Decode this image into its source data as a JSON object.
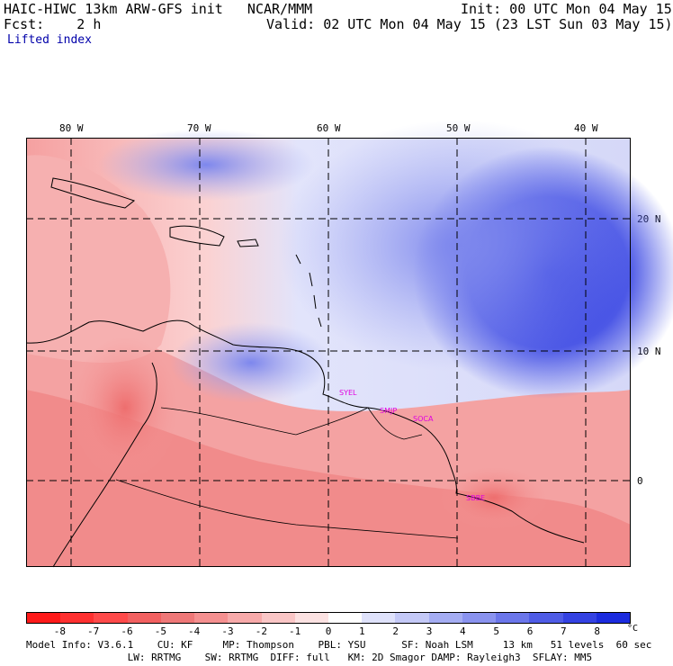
{
  "header": {
    "model": "HAIC-HIWC 13km ARW-GFS init   NCAR/MMM",
    "init": "Init: 00 UTC Mon 04 May 15",
    "fcst": "Fcst:    2 h",
    "valid": "Valid: 02 UTC Mon 04 May 15 (23 LST Sun 03 May 15)",
    "field": "Lifted index"
  },
  "lon_labels": [
    "80 W",
    "70 W",
    "60 W",
    "50 W",
    "40 W"
  ],
  "lat_labels": [
    "20 N",
    "10 N",
    "0"
  ],
  "stations": [
    "SYEL",
    "SMJP",
    "SOCA",
    "SBBE"
  ],
  "colorbar": {
    "ticks": [
      "-8",
      "-7",
      "-6",
      "-5",
      "-4",
      "-3",
      "-2",
      "-1",
      "0",
      "1",
      "2",
      "3",
      "4",
      "5",
      "6",
      "7",
      "8"
    ],
    "unit": "°C",
    "colors": [
      "#ff1a1a",
      "#ff3030",
      "#ff4a4a",
      "#f26060",
      "#ef7878",
      "#f59090",
      "#f8aaaa",
      "#fac6c6",
      "#fce2e2",
      "#ffffff",
      "#dfe2fb",
      "#c4c9f7",
      "#a5adf3",
      "#8a93ef",
      "#6b76ea",
      "#4f5ce6",
      "#3442e2",
      "#1b2bde"
    ]
  },
  "footer": {
    "line1": "Model Info: V3.6.1    CU: KF     MP: Thompson    PBL: YSU      SF: Noah LSM     13 km   51 levels  60 sec",
    "line2": "                 LW: RRTMG    SW: RRTMG  DIFF: full   KM: 2D Smagor DAMP: Rayleigh3  SFLAY: MM5"
  }
}
